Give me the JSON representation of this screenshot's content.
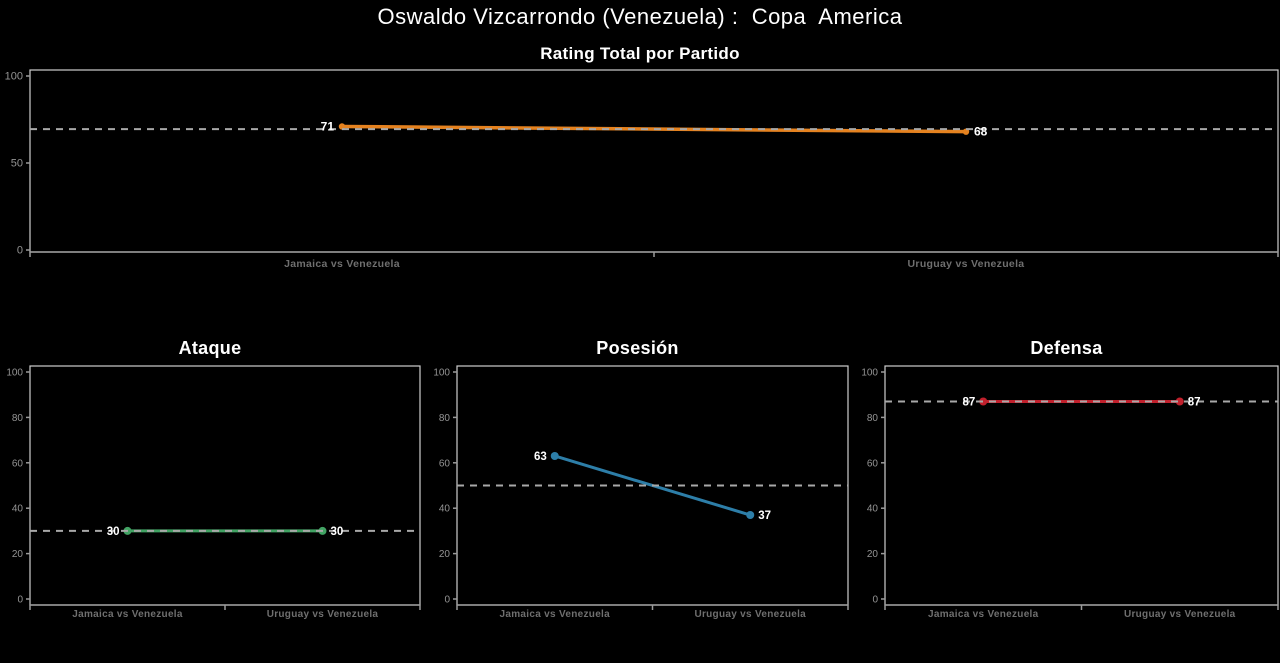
{
  "page": {
    "background": "#000000"
  },
  "header": {
    "title": "Oswaldo Vizcarrondo (Venezuela) :  Copa  America"
  },
  "chart_data": [
    {
      "id": "rating",
      "type": "line",
      "title": "Rating Total por Partido",
      "categories": [
        "Jamaica vs Venezuela",
        "Uruguay vs Venezuela"
      ],
      "values": [
        71,
        68
      ],
      "point_labels": [
        "71",
        "68"
      ],
      "color": "#e5821f",
      "ylim": [
        0,
        100
      ],
      "yticks": [
        0,
        50,
        100
      ],
      "mean_line": 69.5,
      "mean_line_style": "dashed",
      "xlabel": "",
      "ylabel": "",
      "grid": false,
      "legend": "none"
    },
    {
      "id": "ataque",
      "type": "line",
      "title": "Ataque",
      "categories": [
        "Jamaica vs Venezuela",
        "Uruguay vs Venezuela"
      ],
      "values": [
        30,
        30
      ],
      "point_labels": [
        "30",
        "30"
      ],
      "color": "#41a363",
      "ylim": [
        0,
        100
      ],
      "yticks": [
        0,
        20,
        40,
        60,
        80,
        100
      ],
      "mean_line": 30,
      "mean_line_style": "dashed",
      "xlabel": "",
      "ylabel": "",
      "grid": false,
      "legend": "none"
    },
    {
      "id": "posesion",
      "type": "line",
      "title": "Posesión",
      "categories": [
        "Jamaica vs Venezuela",
        "Uruguay vs Venezuela"
      ],
      "values": [
        63,
        37
      ],
      "point_labels": [
        "63",
        "37"
      ],
      "color": "#2d7ea8",
      "ylim": [
        0,
        100
      ],
      "yticks": [
        0,
        20,
        40,
        60,
        80,
        100
      ],
      "mean_line": 50,
      "mean_line_style": "dashed",
      "xlabel": "",
      "ylabel": "",
      "grid": false,
      "legend": "none"
    },
    {
      "id": "defensa",
      "type": "line",
      "title": "Defensa",
      "categories": [
        "Jamaica vs Venezuela",
        "Uruguay vs Venezuela"
      ],
      "values": [
        87,
        87
      ],
      "point_labels": [
        "87",
        "87"
      ],
      "color": "#c1202c",
      "ylim": [
        0,
        100
      ],
      "yticks": [
        0,
        20,
        40,
        60,
        80,
        100
      ],
      "mean_line": 87,
      "mean_line_style": "dashed",
      "xlabel": "",
      "ylabel": "",
      "grid": false,
      "legend": "none"
    }
  ],
  "style": {
    "axis_color": "#9a9a9a",
    "border_color": "#cfcfcf",
    "tick_label_color": "#949494",
    "category_label_color": "#6f6f6f",
    "mean_line_color": "#a8a8a8",
    "point_label_color": "#ffffff"
  }
}
